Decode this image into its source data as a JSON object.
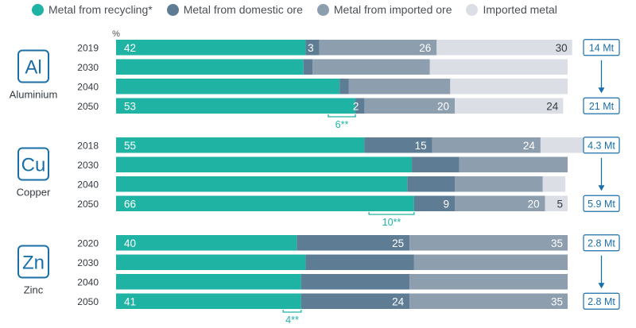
{
  "chart_data": {
    "type": "bar",
    "orientation": "horizontal",
    "stacked": true,
    "unit_label": "%",
    "xlim": [
      0,
      100
    ],
    "legend_position": "top",
    "series": [
      {
        "name": "Metal from recycling*",
        "color": "#1fb3a4"
      },
      {
        "name": "Metal from domestic ore",
        "color": "#5e7d95"
      },
      {
        "name": "Metal from imported ore",
        "color": "#8d9eaf"
      },
      {
        "name": "Imported metal",
        "color": "#dbdfe5"
      }
    ],
    "groups": [
      {
        "symbol": "Al",
        "name": "Aluminium",
        "rows": [
          {
            "year": "2019",
            "values": [
              42,
              3,
              26,
              30
            ],
            "labels": [
              "42",
              "3",
              "26",
              "30"
            ]
          },
          {
            "year": "2030",
            "values": [
              41.5,
              2,
              26,
              30.5
            ],
            "labels": [
              "",
              "",
              "",
              ""
            ]
          },
          {
            "year": "2040",
            "values": [
              49.5,
              2,
              22.5,
              26
            ],
            "labels": [
              "",
              "",
              "",
              ""
            ]
          },
          {
            "year": "2050",
            "values": [
              53,
              2,
              20,
              24
            ],
            "labels": [
              "53",
              "2",
              "20",
              "24"
            ]
          }
        ],
        "totals": [
          {
            "value": "14 Mt",
            "row": 0
          },
          {
            "value": "21 Mt",
            "row": 3
          }
        ],
        "annotation": {
          "label": "6**",
          "row": 3,
          "from": 47,
          "to": 53
        }
      },
      {
        "symbol": "Cu",
        "name": "Copper",
        "rows": [
          {
            "year": "2018",
            "values": [
              55,
              15,
              24,
              13
            ],
            "labels": [
              "55",
              "15",
              "24",
              "13"
            ]
          },
          {
            "year": "2030",
            "values": [
              65.5,
              10.5,
              24,
              0
            ],
            "labels": [
              "",
              "",
              "",
              ""
            ]
          },
          {
            "year": "2040",
            "values": [
              64.5,
              10.5,
              19.5,
              5
            ],
            "labels": [
              "",
              "",
              "",
              ""
            ]
          },
          {
            "year": "2050",
            "values": [
              66,
              9,
              20,
              5
            ],
            "labels": [
              "66",
              "9",
              "20",
              "5"
            ]
          }
        ],
        "totals": [
          {
            "value": "4.3 Mt",
            "row": 0
          },
          {
            "value": "5.9 Mt",
            "row": 3
          }
        ],
        "annotation": {
          "label": "10**",
          "row": 3,
          "from": 56,
          "to": 66
        }
      },
      {
        "symbol": "Zn",
        "name": "Zinc",
        "rows": [
          {
            "year": "2020",
            "values": [
              40,
              25,
              35,
              0
            ],
            "labels": [
              "40",
              "25",
              "35",
              ""
            ]
          },
          {
            "year": "2030",
            "values": [
              42,
              24,
              34,
              0
            ],
            "labels": [
              "",
              "",
              "",
              ""
            ]
          },
          {
            "year": "2040",
            "values": [
              41,
              24,
              35,
              0
            ],
            "labels": [
              "",
              "",
              "",
              ""
            ]
          },
          {
            "year": "2050",
            "values": [
              41,
              24,
              35,
              0
            ],
            "labels": [
              "41",
              "24",
              "35",
              ""
            ]
          }
        ],
        "totals": [
          {
            "value": "2.8 Mt",
            "row": 0
          },
          {
            "value": "2.8 Mt",
            "row": 3
          }
        ],
        "annotation": {
          "label": "4**",
          "row": 3,
          "from": 37,
          "to": 41
        }
      }
    ]
  }
}
